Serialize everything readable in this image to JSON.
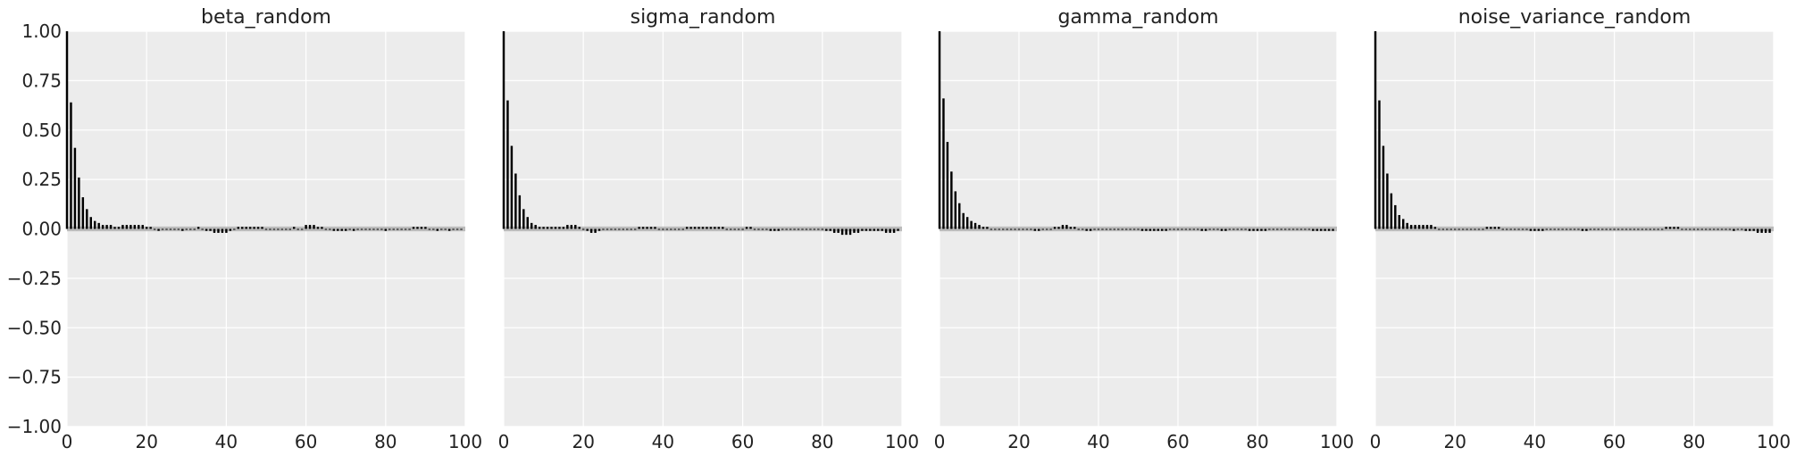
{
  "colors": {
    "plot_background": "#ececec",
    "grid": "#ffffff",
    "bars": "#000000",
    "zero_band": "#bbbbbb",
    "text": "#222222"
  },
  "chart_data": [
    {
      "type": "bar",
      "title": "beta_random",
      "xlim": [
        0,
        100
      ],
      "ylim": [
        -1.0,
        1.0
      ],
      "xticks": [
        "0",
        "20",
        "40",
        "60",
        "80",
        "100"
      ],
      "yticks": [
        "1.00",
        "0.75",
        "0.50",
        "0.25",
        "0.00",
        "−0.25",
        "−0.50",
        "−0.75",
        "−1.00"
      ],
      "y_tick_labels_visible": true,
      "grid": true,
      "lags": [
        0,
        1,
        2,
        3,
        4,
        5,
        6,
        7,
        8,
        9,
        10,
        11,
        12,
        13,
        14,
        15,
        16,
        17,
        18,
        19,
        20,
        21,
        22,
        23,
        24,
        25,
        26,
        27,
        28,
        29,
        30,
        31,
        32,
        33,
        34,
        35,
        36,
        37,
        38,
        39,
        40,
        41,
        42,
        43,
        44,
        45,
        46,
        47,
        48,
        49,
        50,
        51,
        52,
        53,
        54,
        55,
        56,
        57,
        58,
        59,
        60,
        61,
        62,
        63,
        64,
        65,
        66,
        67,
        68,
        69,
        70,
        71,
        72,
        73,
        74,
        75,
        76,
        77,
        78,
        79,
        80,
        81,
        82,
        83,
        84,
        85,
        86,
        87,
        88,
        89,
        90,
        91,
        92,
        93,
        94,
        95,
        96,
        97,
        98,
        99
      ],
      "values": [
        1.0,
        0.64,
        0.41,
        0.26,
        0.16,
        0.1,
        0.06,
        0.04,
        0.03,
        0.02,
        0.02,
        0.02,
        0.01,
        0.01,
        0.02,
        0.02,
        0.02,
        0.02,
        0.02,
        0.02,
        0.01,
        0.01,
        0.0,
        -0.01,
        0.0,
        0.0,
        0.0,
        0.0,
        0.0,
        -0.01,
        0.0,
        0.0,
        0.0,
        0.01,
        0.0,
        -0.01,
        -0.01,
        -0.02,
        -0.02,
        -0.02,
        -0.02,
        -0.01,
        0.0,
        0.01,
        0.01,
        0.01,
        0.01,
        0.01,
        0.01,
        0.01,
        0.0,
        0.0,
        0.0,
        0.0,
        0.0,
        0.0,
        0.0,
        0.01,
        0.0,
        0.0,
        0.02,
        0.02,
        0.02,
        0.01,
        0.01,
        0.0,
        0.0,
        -0.01,
        -0.01,
        -0.01,
        -0.01,
        0.0,
        -0.01,
        0.0,
        0.0,
        0.0,
        0.0,
        0.0,
        0.0,
        0.0,
        -0.01,
        0.0,
        0.0,
        0.0,
        0.0,
        0.0,
        0.0,
        0.01,
        0.01,
        0.01,
        0.01,
        0.0,
        0.0,
        -0.01,
        0.0,
        0.0,
        -0.01,
        0.0,
        0.0,
        0.0
      ]
    },
    {
      "type": "bar",
      "title": "sigma_random",
      "xlim": [
        0,
        100
      ],
      "ylim": [
        -1.0,
        1.0
      ],
      "xticks": [
        "0",
        "20",
        "40",
        "60",
        "80",
        "100"
      ],
      "yticks": [],
      "y_tick_labels_visible": false,
      "grid": true,
      "lags": [
        0,
        1,
        2,
        3,
        4,
        5,
        6,
        7,
        8,
        9,
        10,
        11,
        12,
        13,
        14,
        15,
        16,
        17,
        18,
        19,
        20,
        21,
        22,
        23,
        24,
        25,
        26,
        27,
        28,
        29,
        30,
        31,
        32,
        33,
        34,
        35,
        36,
        37,
        38,
        39,
        40,
        41,
        42,
        43,
        44,
        45,
        46,
        47,
        48,
        49,
        50,
        51,
        52,
        53,
        54,
        55,
        56,
        57,
        58,
        59,
        60,
        61,
        62,
        63,
        64,
        65,
        66,
        67,
        68,
        69,
        70,
        71,
        72,
        73,
        74,
        75,
        76,
        77,
        78,
        79,
        80,
        81,
        82,
        83,
        84,
        85,
        86,
        87,
        88,
        89,
        90,
        91,
        92,
        93,
        94,
        95,
        96,
        97,
        98,
        99
      ],
      "values": [
        1.0,
        0.65,
        0.42,
        0.28,
        0.17,
        0.1,
        0.06,
        0.03,
        0.02,
        0.01,
        0.01,
        0.01,
        0.01,
        0.01,
        0.01,
        0.01,
        0.02,
        0.02,
        0.02,
        0.01,
        0.0,
        -0.01,
        -0.02,
        -0.02,
        -0.01,
        0.0,
        0.0,
        0.0,
        0.0,
        0.0,
        0.0,
        0.0,
        0.0,
        0.0,
        0.01,
        0.01,
        0.01,
        0.01,
        0.01,
        0.0,
        0.0,
        0.0,
        0.0,
        0.0,
        0.0,
        0.0,
        0.01,
        0.01,
        0.01,
        0.01,
        0.01,
        0.01,
        0.01,
        0.01,
        0.01,
        0.01,
        0.0,
        0.0,
        0.0,
        0.0,
        0.0,
        0.01,
        0.01,
        0.0,
        0.0,
        0.0,
        0.0,
        -0.01,
        -0.01,
        -0.01,
        0.0,
        0.0,
        0.0,
        0.0,
        0.0,
        0.0,
        0.0,
        0.0,
        0.0,
        0.0,
        0.0,
        -0.01,
        -0.01,
        -0.02,
        -0.02,
        -0.03,
        -0.03,
        -0.03,
        -0.02,
        -0.02,
        -0.01,
        -0.01,
        -0.01,
        -0.01,
        -0.01,
        -0.01,
        -0.02,
        -0.02,
        -0.02,
        -0.01
      ]
    },
    {
      "type": "bar",
      "title": "gamma_random",
      "xlim": [
        0,
        100
      ],
      "ylim": [
        -1.0,
        1.0
      ],
      "xticks": [
        "0",
        "20",
        "40",
        "60",
        "80",
        "100"
      ],
      "yticks": [],
      "y_tick_labels_visible": false,
      "grid": true,
      "lags": [
        0,
        1,
        2,
        3,
        4,
        5,
        6,
        7,
        8,
        9,
        10,
        11,
        12,
        13,
        14,
        15,
        16,
        17,
        18,
        19,
        20,
        21,
        22,
        23,
        24,
        25,
        26,
        27,
        28,
        29,
        30,
        31,
        32,
        33,
        34,
        35,
        36,
        37,
        38,
        39,
        40,
        41,
        42,
        43,
        44,
        45,
        46,
        47,
        48,
        49,
        50,
        51,
        52,
        53,
        54,
        55,
        56,
        57,
        58,
        59,
        60,
        61,
        62,
        63,
        64,
        65,
        66,
        67,
        68,
        69,
        70,
        71,
        72,
        73,
        74,
        75,
        76,
        77,
        78,
        79,
        80,
        81,
        82,
        83,
        84,
        85,
        86,
        87,
        88,
        89,
        90,
        91,
        92,
        93,
        94,
        95,
        96,
        97,
        98,
        99
      ],
      "values": [
        1.0,
        0.66,
        0.44,
        0.29,
        0.19,
        0.13,
        0.08,
        0.06,
        0.04,
        0.03,
        0.02,
        0.01,
        0.01,
        0.0,
        0.0,
        0.0,
        0.0,
        0.0,
        0.0,
        0.0,
        0.0,
        0.0,
        0.0,
        0.0,
        -0.01,
        -0.01,
        0.0,
        0.0,
        0.0,
        0.01,
        0.01,
        0.02,
        0.02,
        0.01,
        0.01,
        0.0,
        0.0,
        -0.01,
        -0.01,
        0.0,
        0.0,
        0.0,
        0.0,
        0.0,
        0.0,
        0.0,
        0.0,
        0.0,
        0.0,
        0.0,
        0.0,
        -0.01,
        -0.01,
        -0.01,
        -0.01,
        -0.01,
        -0.01,
        -0.01,
        0.0,
        0.0,
        0.0,
        0.0,
        0.0,
        0.0,
        0.0,
        0.0,
        -0.01,
        -0.01,
        0.0,
        0.0,
        0.0,
        -0.01,
        -0.01,
        0.0,
        0.0,
        0.0,
        0.0,
        0.0,
        -0.01,
        -0.01,
        -0.01,
        -0.01,
        -0.01,
        0.0,
        0.0,
        0.0,
        0.0,
        0.0,
        0.0,
        0.0,
        0.0,
        0.0,
        0.0,
        0.0,
        -0.01,
        -0.01,
        -0.01,
        -0.01,
        -0.01,
        -0.01
      ]
    },
    {
      "type": "bar",
      "title": "noise_variance_random",
      "xlim": [
        0,
        100
      ],
      "ylim": [
        -1.0,
        1.0
      ],
      "xticks": [
        "0",
        "20",
        "40",
        "60",
        "80",
        "100"
      ],
      "yticks": [],
      "y_tick_labels_visible": false,
      "grid": true,
      "lags": [
        0,
        1,
        2,
        3,
        4,
        5,
        6,
        7,
        8,
        9,
        10,
        11,
        12,
        13,
        14,
        15,
        16,
        17,
        18,
        19,
        20,
        21,
        22,
        23,
        24,
        25,
        26,
        27,
        28,
        29,
        30,
        31,
        32,
        33,
        34,
        35,
        36,
        37,
        38,
        39,
        40,
        41,
        42,
        43,
        44,
        45,
        46,
        47,
        48,
        49,
        50,
        51,
        52,
        53,
        54,
        55,
        56,
        57,
        58,
        59,
        60,
        61,
        62,
        63,
        64,
        65,
        66,
        67,
        68,
        69,
        70,
        71,
        72,
        73,
        74,
        75,
        76,
        77,
        78,
        79,
        80,
        81,
        82,
        83,
        84,
        85,
        86,
        87,
        88,
        89,
        90,
        91,
        92,
        93,
        94,
        95,
        96,
        97,
        98,
        99
      ],
      "values": [
        1.0,
        0.65,
        0.42,
        0.28,
        0.18,
        0.12,
        0.07,
        0.05,
        0.03,
        0.02,
        0.02,
        0.02,
        0.02,
        0.02,
        0.02,
        0.01,
        0.0,
        0.0,
        0.0,
        0.0,
        0.0,
        0.0,
        0.0,
        0.0,
        0.0,
        0.0,
        0.0,
        0.0,
        0.01,
        0.01,
        0.01,
        0.01,
        0.0,
        0.0,
        0.0,
        0.0,
        0.0,
        0.0,
        0.0,
        -0.01,
        -0.01,
        -0.01,
        -0.01,
        0.0,
        0.0,
        0.0,
        0.0,
        0.0,
        0.0,
        0.0,
        0.0,
        0.0,
        -0.01,
        -0.01,
        0.0,
        0.0,
        0.0,
        0.0,
        0.0,
        0.0,
        0.0,
        0.0,
        0.0,
        0.0,
        0.0,
        0.0,
        0.0,
        0.0,
        0.0,
        0.0,
        0.0,
        0.0,
        0.0,
        0.01,
        0.01,
        0.01,
        0.01,
        0.0,
        0.0,
        0.0,
        0.0,
        0.0,
        0.0,
        0.0,
        0.0,
        0.0,
        0.0,
        0.0,
        0.0,
        0.0,
        -0.01,
        0.0,
        0.0,
        -0.01,
        -0.01,
        -0.01,
        -0.02,
        -0.02,
        -0.02,
        -0.02,
        -0.01
      ]
    }
  ]
}
